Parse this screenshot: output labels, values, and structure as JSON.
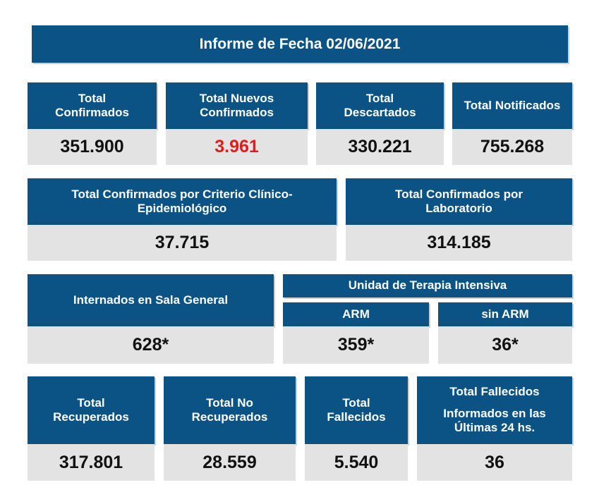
{
  "report": {
    "title": "Informe de Fecha 02/06/2021"
  },
  "row1": [
    {
      "label": "Total Confirmados",
      "value": "351.900",
      "highlight": false
    },
    {
      "label": "Total Nuevos Confirmados",
      "value": "3.961",
      "highlight": true
    },
    {
      "label": "Total Descartados",
      "value": "330.221",
      "highlight": false
    },
    {
      "label": "Total Notificados",
      "value": "755.268",
      "highlight": false
    }
  ],
  "row2": [
    {
      "label": "Total Confirmados por Criterio Clínico-Epidemiológico",
      "value": "37.715"
    },
    {
      "label": "Total Confirmados por Laboratorio",
      "value": "314.185"
    }
  ],
  "row3": {
    "sala_general": {
      "label": "Internados en Sala General",
      "value": "628*"
    },
    "uti": {
      "label": "Unidad de Terapia Intensiva",
      "arm": {
        "label": "ARM",
        "value": "359*"
      },
      "sin_arm": {
        "label": "sin ARM",
        "value": "36*"
      }
    }
  },
  "row4": [
    {
      "label": "Total Recuperados",
      "value": "317.801"
    },
    {
      "label": "Total No Recuperados",
      "value": "28.559"
    },
    {
      "label": "Total Fallecidos",
      "value": "5.540"
    },
    {
      "label_line1": "Total Fallecidos",
      "label_line2": "Informados en las Últimas 24 hs.",
      "value": "36"
    }
  ],
  "colors": {
    "header_blue": "#0b5384",
    "value_gray": "#e3e3e3",
    "highlight_red": "#e21b1b",
    "text_dark": "#111111"
  }
}
